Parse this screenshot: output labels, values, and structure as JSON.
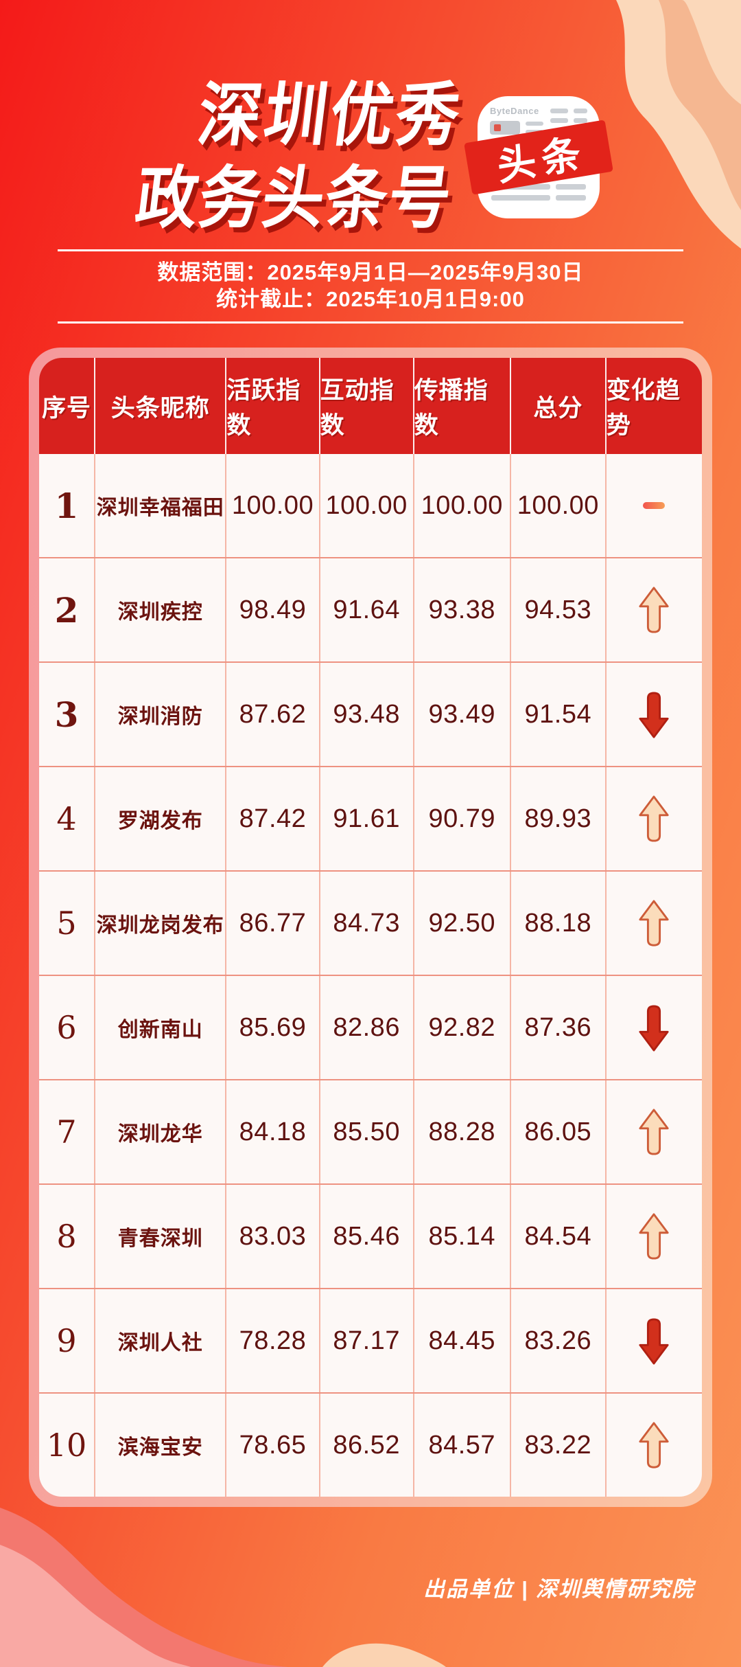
{
  "poster": {
    "title_line1": "深圳优秀",
    "title_line2": "政务头条号",
    "app_badge": {
      "brand": "ByteDance",
      "label": "头条"
    },
    "date_range": "数据范围：2025年9月1日—2025年9月30日",
    "stats_deadline": "统计截止：2025年10月1日9:00",
    "footer": "出品单位 | 深圳舆情研究院"
  },
  "table": {
    "headers": [
      "序号",
      "头条昵称",
      "活跃指数",
      "互动指数",
      "传播指数",
      "总分",
      "变化趋势"
    ],
    "rows": [
      {
        "rank": "1",
        "name": "深圳幸福福田",
        "active": "100.00",
        "interact": "100.00",
        "spread": "100.00",
        "total": "100.00",
        "trend": "flat"
      },
      {
        "rank": "2",
        "name": "深圳疾控",
        "active": "98.49",
        "interact": "91.64",
        "spread": "93.38",
        "total": "94.53",
        "trend": "up"
      },
      {
        "rank": "3",
        "name": "深圳消防",
        "active": "87.62",
        "interact": "93.48",
        "spread": "93.49",
        "total": "91.54",
        "trend": "down"
      },
      {
        "rank": "4",
        "name": "罗湖发布",
        "active": "87.42",
        "interact": "91.61",
        "spread": "90.79",
        "total": "89.93",
        "trend": "up"
      },
      {
        "rank": "5",
        "name": "深圳龙岗发布",
        "active": "86.77",
        "interact": "84.73",
        "spread": "92.50",
        "total": "88.18",
        "trend": "up"
      },
      {
        "rank": "6",
        "name": "创新南山",
        "active": "85.69",
        "interact": "82.86",
        "spread": "92.82",
        "total": "87.36",
        "trend": "down"
      },
      {
        "rank": "7",
        "name": "深圳龙华",
        "active": "84.18",
        "interact": "85.50",
        "spread": "88.28",
        "total": "86.05",
        "trend": "up"
      },
      {
        "rank": "8",
        "name": "青春深圳",
        "active": "83.03",
        "interact": "85.46",
        "spread": "85.14",
        "total": "84.54",
        "trend": "up"
      },
      {
        "rank": "9",
        "name": "深圳人社",
        "active": "78.28",
        "interact": "87.17",
        "spread": "84.45",
        "total": "83.26",
        "trend": "down"
      },
      {
        "rank": "10",
        "name": "滨海宝安",
        "active": "78.65",
        "interact": "86.52",
        "spread": "84.57",
        "total": "83.22",
        "trend": "up"
      }
    ]
  },
  "colors": {
    "header_bg": "#d7211e",
    "ribbon_red": "#e2231a",
    "text_maroon": "#5e1210",
    "up_fill": "#fbdcbb",
    "up_stroke": "#cd5c38",
    "down_fill": "#d2301c",
    "dash_left": "#f2544d",
    "dash_right": "#f79e57"
  },
  "chart_data": {
    "type": "table",
    "title": "深圳优秀政务头条号",
    "subtitle": "数据范围：2025年9月1日—2025年9月30日；统计截止：2025年10月1日9:00",
    "columns": [
      "序号",
      "头条昵称",
      "活跃指数",
      "互动指数",
      "传播指数",
      "总分",
      "变化趋势"
    ],
    "rows": [
      [
        1,
        "深圳幸福福田",
        100.0,
        100.0,
        100.0,
        100.0,
        "持平"
      ],
      [
        2,
        "深圳疾控",
        98.49,
        91.64,
        93.38,
        94.53,
        "上升"
      ],
      [
        3,
        "深圳消防",
        87.62,
        93.48,
        93.49,
        91.54,
        "下降"
      ],
      [
        4,
        "罗湖发布",
        87.42,
        91.61,
        90.79,
        89.93,
        "上升"
      ],
      [
        5,
        "深圳龙岗发布",
        86.77,
        84.73,
        92.5,
        88.18,
        "上升"
      ],
      [
        6,
        "创新南山",
        85.69,
        82.86,
        92.82,
        87.36,
        "下降"
      ],
      [
        7,
        "深圳龙华",
        84.18,
        85.5,
        88.28,
        86.05,
        "上升"
      ],
      [
        8,
        "青春深圳",
        83.03,
        85.46,
        85.14,
        84.54,
        "上升"
      ],
      [
        9,
        "深圳人社",
        78.28,
        87.17,
        84.45,
        83.26,
        "下降"
      ],
      [
        10,
        "滨海宝安",
        78.65,
        86.52,
        84.57,
        83.22,
        "上升"
      ]
    ],
    "source": "出品单位 | 深圳舆情研究院"
  }
}
